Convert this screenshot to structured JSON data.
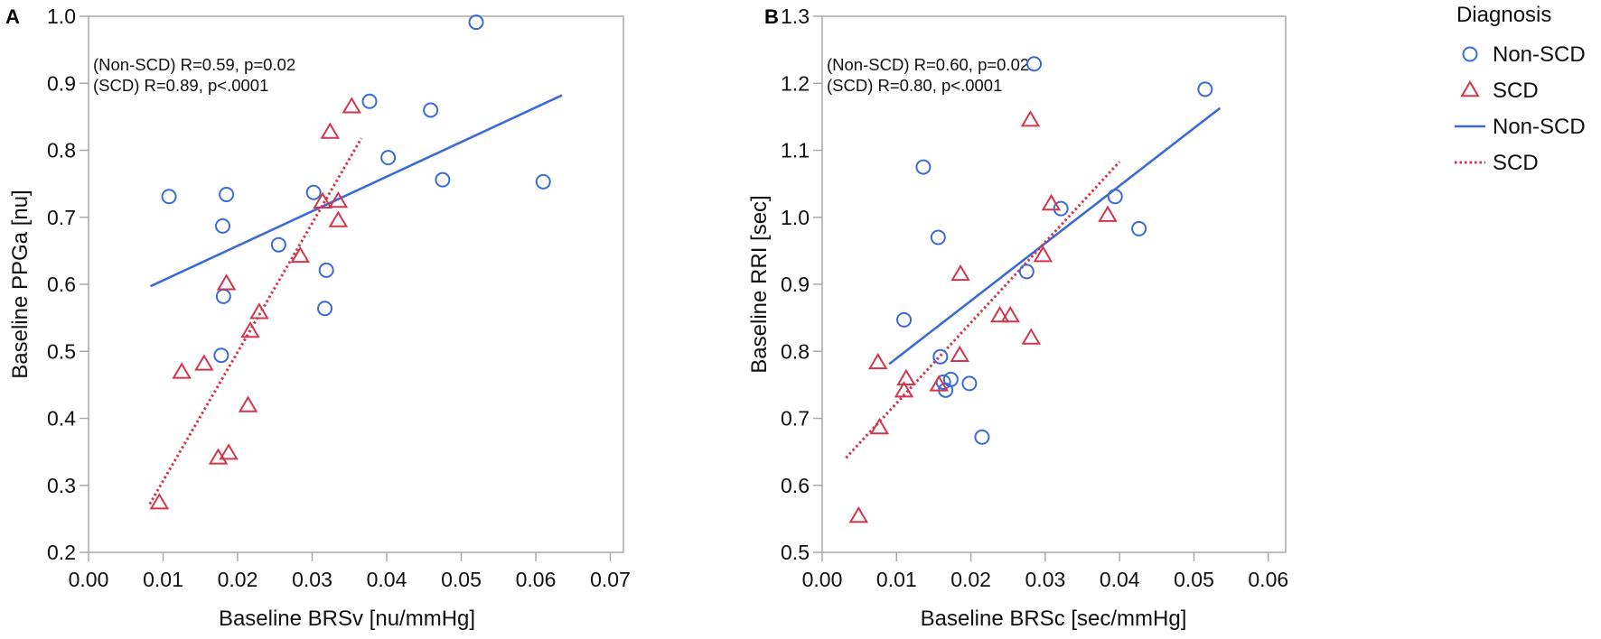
{
  "colors": {
    "non_scd": "#3b6bd6",
    "scd": "#d2364c",
    "axis": "#a8a8a8"
  },
  "legend": {
    "title": "Diagnosis",
    "items": [
      {
        "label": "Non-SCD",
        "kind": "circle",
        "group": "non_scd"
      },
      {
        "label": "SCD",
        "kind": "triangle",
        "group": "scd"
      },
      {
        "label": "Non-SCD",
        "kind": "solid-line",
        "group": "non_scd"
      },
      {
        "label": "SCD",
        "kind": "dotted-line",
        "group": "scd"
      }
    ]
  },
  "chart_data": [
    {
      "type": "scatter",
      "panel": "A",
      "xlabel": "Baseline BRSv [nu/mmHg]",
      "ylabel": "Baseline PPGa [nu]",
      "xlim": [
        0,
        0.0725
      ],
      "ylim": [
        0.2,
        1.0
      ],
      "xticks": [
        "0.00",
        "0.01",
        "0.02",
        "0.03",
        "0.04",
        "0.05",
        "0.06",
        "0.07"
      ],
      "yticks": [
        "0.2",
        "0.3",
        "0.4",
        "0.5",
        "0.6",
        "0.7",
        "0.8",
        "0.9",
        "1.0"
      ],
      "annotations": [
        "(Non-SCD) R=0.59, p=0.02",
        "(SCD) R=0.89, p<.0001"
      ],
      "series": [
        {
          "name": "Non-SCD",
          "marker": "circle",
          "points": [
            [
              0.0108,
              0.731
            ],
            [
              0.0185,
              0.734
            ],
            [
              0.018,
              0.687
            ],
            [
              0.0181,
              0.582
            ],
            [
              0.0178,
              0.494
            ],
            [
              0.0255,
              0.659
            ],
            [
              0.0302,
              0.737
            ],
            [
              0.0319,
              0.621
            ],
            [
              0.0317,
              0.564
            ],
            [
              0.0377,
              0.873
            ],
            [
              0.0402,
              0.789
            ],
            [
              0.0459,
              0.86
            ],
            [
              0.0475,
              0.756
            ],
            [
              0.052,
              0.991
            ],
            [
              0.061,
              0.753
            ]
          ]
        },
        {
          "name": "SCD",
          "marker": "triangle",
          "points": [
            [
              0.0353,
              0.865
            ],
            [
              0.0324,
              0.827
            ],
            [
              0.0314,
              0.723
            ],
            [
              0.0335,
              0.724
            ],
            [
              0.0335,
              0.695
            ],
            [
              0.0284,
              0.642
            ],
            [
              0.0185,
              0.601
            ],
            [
              0.0229,
              0.558
            ],
            [
              0.0217,
              0.53
            ],
            [
              0.0155,
              0.481
            ],
            [
              0.0125,
              0.469
            ],
            [
              0.0214,
              0.419
            ],
            [
              0.0174,
              0.341
            ],
            [
              0.0188,
              0.348
            ],
            [
              0.0095,
              0.274
            ]
          ]
        }
      ],
      "fits": [
        {
          "name": "Non-SCD",
          "style": "solid",
          "from": [
            0.0083,
            0.597
          ],
          "to": [
            0.0635,
            0.882
          ]
        },
        {
          "name": "SCD",
          "style": "dotted",
          "from": [
            0.0082,
            0.272
          ],
          "to": [
            0.0366,
            0.818
          ]
        }
      ]
    },
    {
      "type": "scatter",
      "panel": "B",
      "xlabel": "Baseline BRSc [sec/mmHg]",
      "ylabel": "Baseline RRI [sec]",
      "xlim": [
        0,
        0.0623
      ],
      "ylim": [
        0.5,
        1.3
      ],
      "xticks": [
        "0.00",
        "0.01",
        "0.02",
        "0.03",
        "0.04",
        "0.05",
        "0.06"
      ],
      "yticks": [
        "0.5",
        "0.6",
        "0.7",
        "0.8",
        "0.9",
        "1.0",
        "1.1",
        "1.2",
        "1.3"
      ],
      "annotations": [
        "(Non-SCD) R=0.60, p=0.02",
        "(SCD) R=0.80, p<.0001"
      ],
      "series": [
        {
          "name": "Non-SCD",
          "marker": "circle",
          "points": [
            [
              0.0285,
              1.229
            ],
            [
              0.0136,
              1.075
            ],
            [
              0.0156,
              0.97
            ],
            [
              0.0321,
              1.013
            ],
            [
              0.0394,
              1.031
            ],
            [
              0.0426,
              0.983
            ],
            [
              0.0275,
              0.919
            ],
            [
              0.011,
              0.847
            ],
            [
              0.0159,
              0.792
            ],
            [
              0.0163,
              0.754
            ],
            [
              0.0166,
              0.742
            ],
            [
              0.0173,
              0.758
            ],
            [
              0.0198,
              0.752
            ],
            [
              0.0215,
              0.672
            ],
            [
              0.0515,
              1.191
            ]
          ]
        },
        {
          "name": "SCD",
          "marker": "triangle",
          "points": [
            [
              0.028,
              1.145
            ],
            [
              0.0308,
              1.02
            ],
            [
              0.0384,
              1.003
            ],
            [
              0.0297,
              0.943
            ],
            [
              0.0186,
              0.915
            ],
            [
              0.0239,
              0.853
            ],
            [
              0.0253,
              0.853
            ],
            [
              0.0281,
              0.82
            ],
            [
              0.0185,
              0.794
            ],
            [
              0.0075,
              0.783
            ],
            [
              0.0113,
              0.759
            ],
            [
              0.011,
              0.741
            ],
            [
              0.0157,
              0.75
            ],
            [
              0.0077,
              0.686
            ],
            [
              0.0049,
              0.554
            ]
          ]
        }
      ],
      "fits": [
        {
          "name": "Non-SCD",
          "style": "solid",
          "from": [
            0.009,
            0.781
          ],
          "to": [
            0.0535,
            1.163
          ]
        },
        {
          "name": "SCD",
          "style": "dotted",
          "from": [
            0.0032,
            0.641
          ],
          "to": [
            0.04,
            1.083
          ]
        }
      ]
    }
  ]
}
